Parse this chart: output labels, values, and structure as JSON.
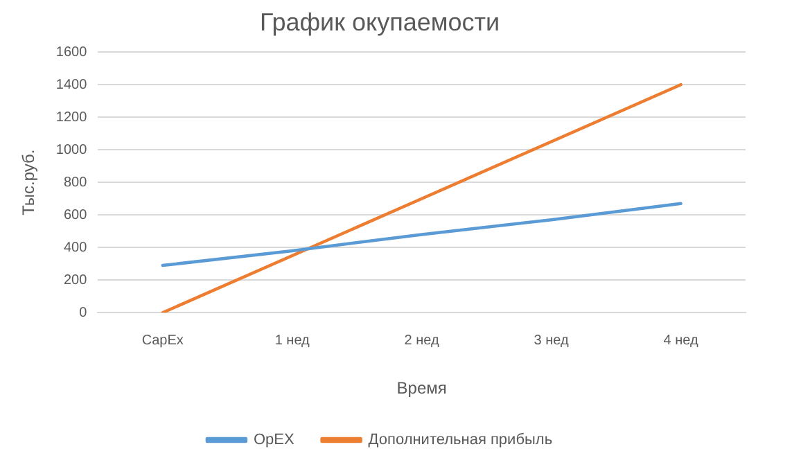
{
  "chart_data": {
    "type": "line",
    "title": "График окупаемости",
    "xlabel": "Время",
    "ylabel": "Тыс.руб.",
    "categories": [
      "CapEx",
      "1 нед",
      "2 нед",
      "3 нед",
      "4 нед"
    ],
    "series": [
      {
        "name": "OpEX",
        "color": "#5b9bd5",
        "values": [
          290,
          380,
          480,
          570,
          670
        ]
      },
      {
        "name": "Дополнительная прибыль",
        "color": "#ed7d31",
        "values": [
          0,
          350,
          700,
          1050,
          1400
        ]
      }
    ],
    "ylim": [
      0,
      1600
    ],
    "yticks": [
      0,
      200,
      400,
      600,
      800,
      1000,
      1200,
      1400,
      1600
    ],
    "grid": "y",
    "legend": "bottom",
    "marker": "none",
    "line_style": "solid"
  }
}
